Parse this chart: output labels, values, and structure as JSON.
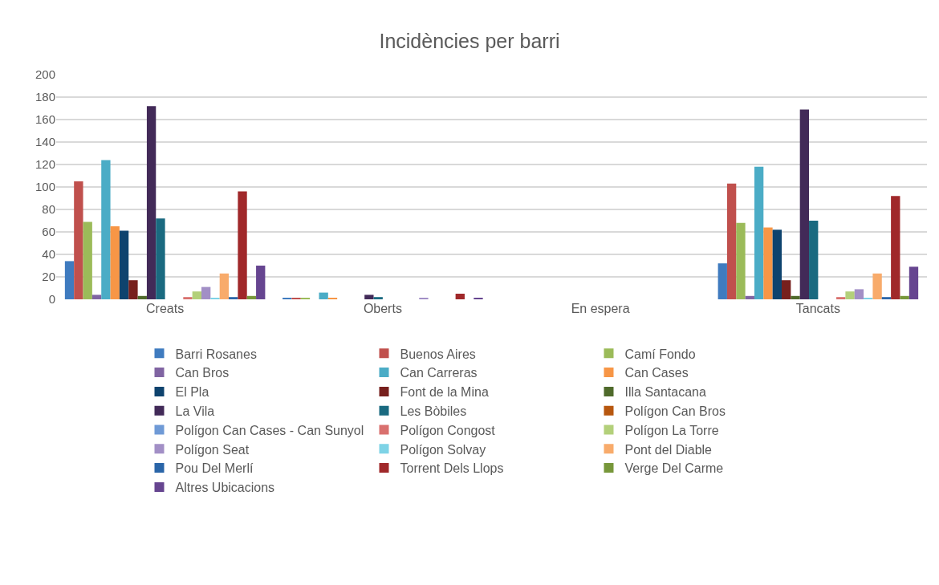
{
  "chart_data": {
    "type": "bar",
    "title": "Incidències per barri",
    "categories": [
      "Creats",
      "Oberts",
      "En espera",
      "Tancats"
    ],
    "ylim": [
      0,
      200
    ],
    "yticks": [
      0,
      20,
      40,
      60,
      80,
      100,
      120,
      140,
      160,
      180,
      200
    ],
    "grid": "y",
    "legend": "bottom",
    "series": [
      {
        "name": "Barri Rosanes",
        "color": "#3f7bbf",
        "values": [
          34,
          1,
          0,
          32
        ]
      },
      {
        "name": "Buenos Aires",
        "color": "#c0504d",
        "values": [
          105,
          1,
          0,
          103
        ]
      },
      {
        "name": "Camí Fondo",
        "color": "#9bbb59",
        "values": [
          69,
          1,
          0,
          68
        ]
      },
      {
        "name": "Can Bros",
        "color": "#8064a2",
        "values": [
          4,
          0,
          0,
          3
        ]
      },
      {
        "name": "Can Carreras",
        "color": "#4bacc6",
        "values": [
          124,
          6,
          0,
          118
        ]
      },
      {
        "name": "Can Cases",
        "color": "#f79646",
        "values": [
          65,
          1,
          0,
          64
        ]
      },
      {
        "name": "El Pla",
        "color": "#0e436e",
        "values": [
          61,
          0,
          0,
          62
        ]
      },
      {
        "name": "Font de la Mina",
        "color": "#77201d",
        "values": [
          17,
          0,
          0,
          17
        ]
      },
      {
        "name": "Illa Santacana",
        "color": "#4f6a2b",
        "values": [
          3,
          0,
          0,
          3
        ]
      },
      {
        "name": "La Vila",
        "color": "#422a58",
        "values": [
          172,
          4,
          0,
          169
        ]
      },
      {
        "name": "Les Bòbiles",
        "color": "#1a6a80",
        "values": [
          72,
          2,
          0,
          70
        ]
      },
      {
        "name": "Polígon Can Bros",
        "color": "#b7570f",
        "values": [
          0,
          0,
          0,
          0
        ]
      },
      {
        "name": "Polígon Can Cases - Can Sunyol",
        "color": "#6f9ad6",
        "values": [
          0,
          0,
          0,
          0
        ]
      },
      {
        "name": "Polígon Congost",
        "color": "#d9706e",
        "values": [
          2,
          0,
          0,
          2
        ]
      },
      {
        "name": "Polígon La Torre",
        "color": "#b3d07a",
        "values": [
          7,
          0,
          0,
          7
        ]
      },
      {
        "name": "Polígon Seat",
        "color": "#a28fc6",
        "values": [
          11,
          1,
          0,
          9
        ]
      },
      {
        "name": "Polígon Solvay",
        "color": "#7ed3e6",
        "values": [
          1,
          0,
          0,
          1
        ]
      },
      {
        "name": "Pont del Diable",
        "color": "#f8ab6b",
        "values": [
          23,
          0,
          0,
          23
        ]
      },
      {
        "name": "Pou Del Merlí",
        "color": "#2a65a8",
        "values": [
          2,
          0,
          0,
          2
        ]
      },
      {
        "name": "Torrent Dels Llops",
        "color": "#a0282a",
        "values": [
          96,
          5,
          0,
          92
        ]
      },
      {
        "name": "Verge Del Carme",
        "color": "#77973a",
        "values": [
          3,
          0,
          0,
          3
        ]
      },
      {
        "name": "Altres Ubicacions",
        "color": "#664590",
        "values": [
          30,
          1,
          0,
          29
        ]
      }
    ]
  }
}
